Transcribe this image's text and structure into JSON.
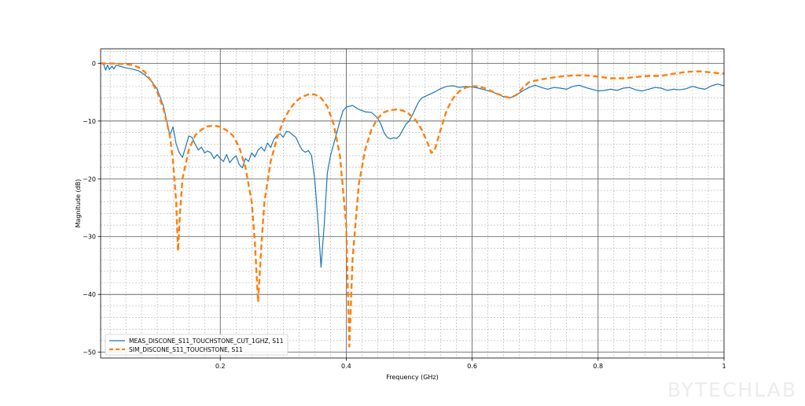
{
  "chart_data": {
    "type": "line",
    "title": "",
    "xlabel": "Frequency (GHz)",
    "ylabel": "Magnitude (dB)",
    "xlim": [
      0.01,
      1.0
    ],
    "ylim": [
      -51,
      2.5
    ],
    "x_ticks": [
      0.2,
      0.4,
      0.6,
      0.8,
      1.0
    ],
    "x_tick_labels": [
      "0.2",
      "0.4",
      "0.6",
      "0.8",
      "1"
    ],
    "y_ticks": [
      0,
      -10,
      -20,
      -30,
      -40,
      -50
    ],
    "y_tick_labels": [
      "0",
      "−10",
      "−20",
      "−30",
      "−40",
      "−50"
    ],
    "grid": true,
    "minor_grid": true,
    "legend_position": "lower-left",
    "series": [
      {
        "name": "MEAS_DISCONE_S11_TOUCHSTONE_CUT_1GHZ, S11",
        "color": "#1f77b4",
        "style": "solid",
        "points": [
          [
            0.01,
            0
          ],
          [
            0.015,
            -0.2
          ],
          [
            0.018,
            -1.2
          ],
          [
            0.021,
            -0.3
          ],
          [
            0.024,
            -1.1
          ],
          [
            0.028,
            -0.5
          ],
          [
            0.031,
            -1.0
          ],
          [
            0.035,
            -0.3
          ],
          [
            0.04,
            -0.5
          ],
          [
            0.05,
            -0.8
          ],
          [
            0.06,
            -1.0
          ],
          [
            0.07,
            -1.3
          ],
          [
            0.08,
            -2.0
          ],
          [
            0.09,
            -3.0
          ],
          [
            0.1,
            -4.5
          ],
          [
            0.11,
            -7.5
          ],
          [
            0.115,
            -10
          ],
          [
            0.12,
            -12.5
          ],
          [
            0.125,
            -11
          ],
          [
            0.13,
            -14
          ],
          [
            0.135,
            -15.5
          ],
          [
            0.14,
            -16.3
          ],
          [
            0.145,
            -14.5
          ],
          [
            0.15,
            -12.6
          ],
          [
            0.155,
            -12.8
          ],
          [
            0.16,
            -14
          ],
          [
            0.165,
            -15
          ],
          [
            0.17,
            -14.5
          ],
          [
            0.175,
            -15.5
          ],
          [
            0.18,
            -15.2
          ],
          [
            0.185,
            -15.5
          ],
          [
            0.19,
            -16.5
          ],
          [
            0.195,
            -15.8
          ],
          [
            0.2,
            -16.5
          ],
          [
            0.205,
            -17
          ],
          [
            0.21,
            -15.8
          ],
          [
            0.215,
            -17.2
          ],
          [
            0.22,
            -16.5
          ],
          [
            0.225,
            -16
          ],
          [
            0.23,
            -17.5
          ],
          [
            0.235,
            -18.1
          ],
          [
            0.24,
            -16.5
          ],
          [
            0.245,
            -17
          ],
          [
            0.25,
            -15.5
          ],
          [
            0.255,
            -16.2
          ],
          [
            0.26,
            -15
          ],
          [
            0.265,
            -14.5
          ],
          [
            0.27,
            -15.2
          ],
          [
            0.275,
            -13.8
          ],
          [
            0.28,
            -14.6
          ],
          [
            0.285,
            -13.2
          ],
          [
            0.29,
            -12.5
          ],
          [
            0.295,
            -12.2
          ],
          [
            0.3,
            -12.8
          ],
          [
            0.305,
            -11.8
          ],
          [
            0.31,
            -11.9
          ],
          [
            0.315,
            -12.4
          ],
          [
            0.32,
            -12.8
          ],
          [
            0.325,
            -14
          ],
          [
            0.33,
            -15
          ],
          [
            0.335,
            -15.4
          ],
          [
            0.34,
            -15.1
          ],
          [
            0.345,
            -16
          ],
          [
            0.35,
            -20
          ],
          [
            0.355,
            -27
          ],
          [
            0.36,
            -35.3
          ],
          [
            0.365,
            -28
          ],
          [
            0.37,
            -19
          ],
          [
            0.375,
            -16
          ],
          [
            0.38,
            -14
          ],
          [
            0.385,
            -12
          ],
          [
            0.39,
            -10
          ],
          [
            0.395,
            -8.2
          ],
          [
            0.4,
            -7.6
          ],
          [
            0.41,
            -7.3
          ],
          [
            0.42,
            -8
          ],
          [
            0.43,
            -8.4
          ],
          [
            0.44,
            -8.5
          ],
          [
            0.45,
            -9.5
          ],
          [
            0.455,
            -10.5
          ],
          [
            0.46,
            -12
          ],
          [
            0.465,
            -12.8
          ],
          [
            0.47,
            -13.1
          ],
          [
            0.475,
            -12.9
          ],
          [
            0.48,
            -13
          ],
          [
            0.485,
            -12.5
          ],
          [
            0.49,
            -11.5
          ],
          [
            0.495,
            -10.5
          ],
          [
            0.5,
            -10
          ],
          [
            0.505,
            -9
          ],
          [
            0.51,
            -7.8
          ],
          [
            0.515,
            -6.7
          ],
          [
            0.52,
            -6
          ],
          [
            0.53,
            -5.5
          ],
          [
            0.54,
            -5
          ],
          [
            0.55,
            -4.4
          ],
          [
            0.56,
            -4
          ],
          [
            0.57,
            -3.9
          ],
          [
            0.58,
            -4.2
          ],
          [
            0.59,
            -4
          ],
          [
            0.6,
            -4.1
          ],
          [
            0.61,
            -4.3
          ],
          [
            0.62,
            -4.6
          ],
          [
            0.63,
            -4.9
          ],
          [
            0.64,
            -5.3
          ],
          [
            0.65,
            -5.8
          ],
          [
            0.66,
            -6
          ],
          [
            0.67,
            -5.5
          ],
          [
            0.68,
            -4.8
          ],
          [
            0.69,
            -4.2
          ],
          [
            0.7,
            -3.8
          ],
          [
            0.71,
            -4.2
          ],
          [
            0.72,
            -4.5
          ],
          [
            0.73,
            -4.2
          ],
          [
            0.74,
            -4.3
          ],
          [
            0.75,
            -4.5
          ],
          [
            0.76,
            -4
          ],
          [
            0.77,
            -3.8
          ],
          [
            0.78,
            -4.2
          ],
          [
            0.79,
            -4.5
          ],
          [
            0.8,
            -4.8
          ],
          [
            0.81,
            -4.7
          ],
          [
            0.82,
            -4.5
          ],
          [
            0.83,
            -4.7
          ],
          [
            0.84,
            -4.3
          ],
          [
            0.85,
            -4.2
          ],
          [
            0.86,
            -4.6
          ],
          [
            0.87,
            -4.8
          ],
          [
            0.88,
            -4.5
          ],
          [
            0.89,
            -4.2
          ],
          [
            0.9,
            -4.3
          ],
          [
            0.91,
            -4.7
          ],
          [
            0.92,
            -4.5
          ],
          [
            0.93,
            -4.6
          ],
          [
            0.94,
            -4.4
          ],
          [
            0.95,
            -4
          ],
          [
            0.96,
            -4.3
          ],
          [
            0.97,
            -4.5
          ],
          [
            0.98,
            -3.9
          ],
          [
            0.99,
            -3.6
          ],
          [
            1.0,
            -3.9
          ]
        ]
      },
      {
        "name": "SIM_DISCONE_S11_TOUCHSTONE, S11",
        "color": "#ff7f0e",
        "style": "dashed",
        "points": [
          [
            0.01,
            0
          ],
          [
            0.02,
            -0.05
          ],
          [
            0.03,
            -0.05
          ],
          [
            0.04,
            -0.1
          ],
          [
            0.05,
            -0.15
          ],
          [
            0.06,
            -0.3
          ],
          [
            0.07,
            -0.7
          ],
          [
            0.08,
            -1.5
          ],
          [
            0.09,
            -3
          ],
          [
            0.1,
            -5
          ],
          [
            0.11,
            -8
          ],
          [
            0.12,
            -12.5
          ],
          [
            0.125,
            -17
          ],
          [
            0.13,
            -24
          ],
          [
            0.133,
            -32.5
          ],
          [
            0.136,
            -26
          ],
          [
            0.14,
            -20
          ],
          [
            0.15,
            -15
          ],
          [
            0.16,
            -12.5
          ],
          [
            0.17,
            -11.5
          ],
          [
            0.18,
            -10.9
          ],
          [
            0.19,
            -10.8
          ],
          [
            0.2,
            -11
          ],
          [
            0.21,
            -11.6
          ],
          [
            0.22,
            -12.5
          ],
          [
            0.23,
            -14.5
          ],
          [
            0.24,
            -18
          ],
          [
            0.25,
            -24
          ],
          [
            0.255,
            -31
          ],
          [
            0.26,
            -41.3
          ],
          [
            0.265,
            -32
          ],
          [
            0.27,
            -24
          ],
          [
            0.28,
            -17
          ],
          [
            0.29,
            -13
          ],
          [
            0.3,
            -10
          ],
          [
            0.31,
            -8
          ],
          [
            0.32,
            -6.6
          ],
          [
            0.33,
            -5.8
          ],
          [
            0.34,
            -5.4
          ],
          [
            0.35,
            -5.4
          ],
          [
            0.36,
            -6
          ],
          [
            0.37,
            -7.5
          ],
          [
            0.38,
            -10.5
          ],
          [
            0.39,
            -16
          ],
          [
            0.4,
            -28
          ],
          [
            0.405,
            -49
          ],
          [
            0.41,
            -34
          ],
          [
            0.42,
            -21
          ],
          [
            0.43,
            -15
          ],
          [
            0.44,
            -11.5
          ],
          [
            0.45,
            -9.5
          ],
          [
            0.46,
            -8.5
          ],
          [
            0.47,
            -8.1
          ],
          [
            0.48,
            -8
          ],
          [
            0.49,
            -8.2
          ],
          [
            0.5,
            -8.8
          ],
          [
            0.51,
            -9.8
          ],
          [
            0.52,
            -11.5
          ],
          [
            0.53,
            -14
          ],
          [
            0.535,
            -15.5
          ],
          [
            0.54,
            -15.2
          ],
          [
            0.55,
            -11.5
          ],
          [
            0.56,
            -8
          ],
          [
            0.57,
            -6
          ],
          [
            0.58,
            -4.8
          ],
          [
            0.59,
            -4.2
          ],
          [
            0.6,
            -4
          ],
          [
            0.61,
            -4
          ],
          [
            0.62,
            -4.3
          ],
          [
            0.63,
            -4.8
          ],
          [
            0.64,
            -5.3
          ],
          [
            0.65,
            -5.7
          ],
          [
            0.66,
            -6
          ],
          [
            0.67,
            -5.5
          ],
          [
            0.68,
            -4.3
          ],
          [
            0.69,
            -3.3
          ],
          [
            0.7,
            -3
          ],
          [
            0.72,
            -2.6
          ],
          [
            0.74,
            -2.3
          ],
          [
            0.76,
            -2.1
          ],
          [
            0.78,
            -2.1
          ],
          [
            0.8,
            -2.3
          ],
          [
            0.82,
            -2.6
          ],
          [
            0.84,
            -2.6
          ],
          [
            0.86,
            -2.4
          ],
          [
            0.88,
            -2.2
          ],
          [
            0.9,
            -2.2
          ],
          [
            0.92,
            -1.8
          ],
          [
            0.94,
            -1.5
          ],
          [
            0.96,
            -1.4
          ],
          [
            0.98,
            -1.6
          ],
          [
            1.0,
            -1.8
          ]
        ]
      }
    ]
  },
  "watermark": "BYTECHLAB"
}
